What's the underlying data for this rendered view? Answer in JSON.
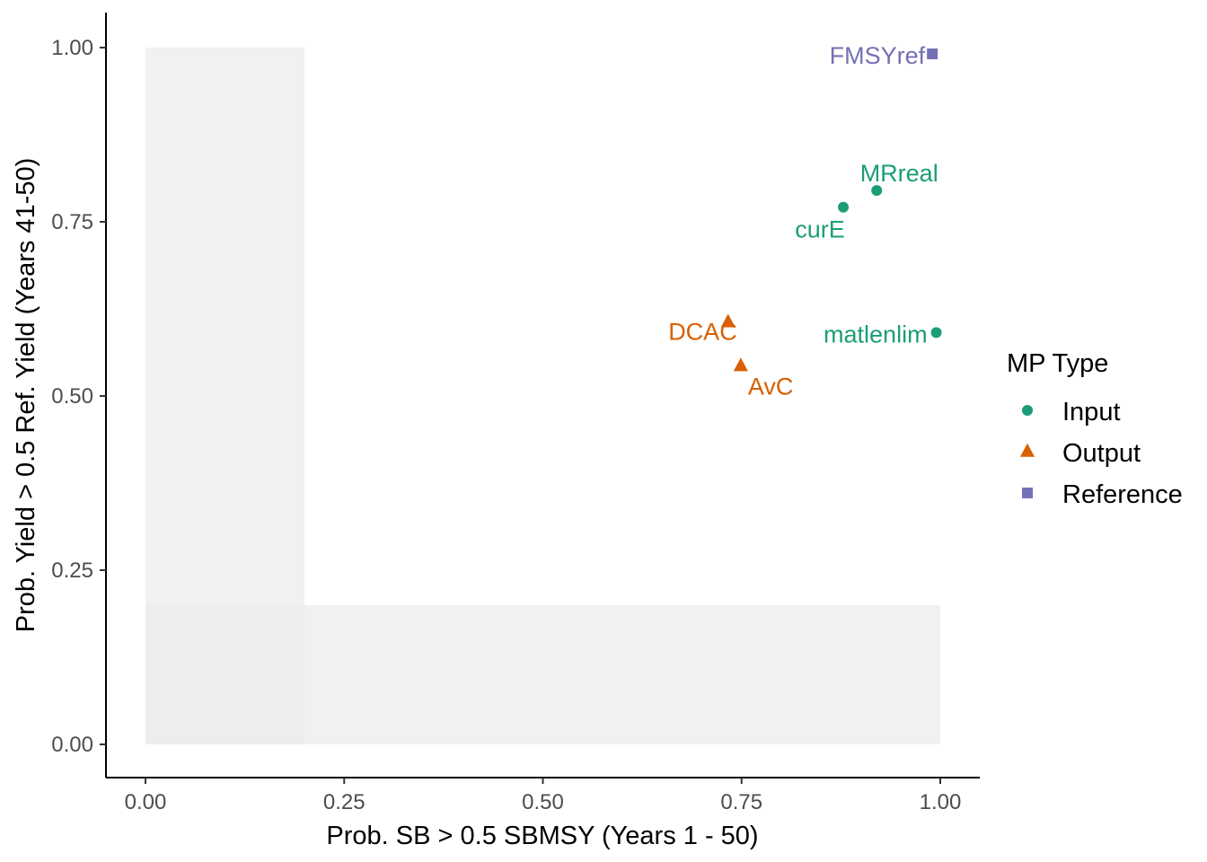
{
  "chart_data": {
    "type": "scatter",
    "title": "",
    "xlabel": "Prob. SB > 0.5 SBMSY (Years 1 - 50)",
    "ylabel": "Prob. Yield > 0.5 Ref. Yield (Years 41-50)",
    "xlim": [
      -0.05,
      1.05
    ],
    "ylim": [
      -0.05,
      1.05
    ],
    "x_ticks": [
      "0.00",
      "0.25",
      "0.50",
      "0.75",
      "1.00"
    ],
    "y_ticks": [
      "0.00",
      "0.25",
      "0.50",
      "0.75",
      "1.00"
    ],
    "grid": false,
    "legend_position": "right",
    "legend_title": "MP Type",
    "shaded_regions": [
      {
        "x": [
          0,
          0.2
        ],
        "y": [
          0,
          1
        ],
        "color": "#ebebeb"
      },
      {
        "x": [
          0,
          1
        ],
        "y": [
          0,
          0.2
        ],
        "color": "#ebebeb"
      }
    ],
    "series": [
      {
        "name": "Input",
        "shape": "circle",
        "color": "#1b9e77",
        "points": [
          {
            "label": "MRreal",
            "x": 0.92,
            "y": 0.795
          },
          {
            "label": "curE",
            "x": 0.878,
            "y": 0.771
          },
          {
            "label": "matlenlim",
            "x": 0.995,
            "y": 0.591
          }
        ]
      },
      {
        "name": "Output",
        "shape": "triangle",
        "color": "#d95f02",
        "points": [
          {
            "label": "DCAC",
            "x": 0.733,
            "y": 0.606
          },
          {
            "label": "AvC",
            "x": 0.749,
            "y": 0.543
          }
        ]
      },
      {
        "name": "Reference",
        "shape": "square",
        "color": "#7570b3",
        "points": [
          {
            "label": "FMSYref",
            "x": 0.99,
            "y": 0.991
          }
        ]
      }
    ]
  }
}
